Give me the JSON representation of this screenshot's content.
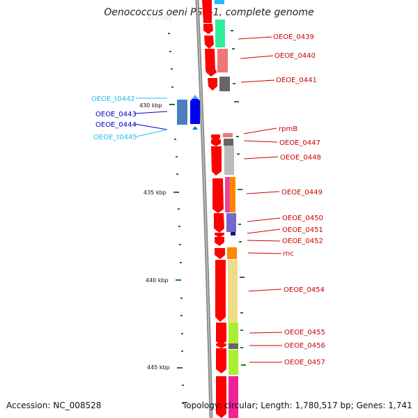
{
  "title": "Oenococcus oeni PSU-1, complete genome",
  "footer": {
    "accession": "Accession: NC_008528",
    "topology": "Topology: circular; Length: 1,780,517 bp; Genes: 1,741"
  },
  "colors": {
    "backbone": "#808080",
    "red_gene": "#ff0000",
    "tick": "#1a7a1a",
    "label_red": "#cc0000",
    "label_blue": "#0000cc",
    "label_cyan": "#22bbee"
  },
  "scale_labels": [
    {
      "kbp": 430,
      "text": "430 kbp"
    },
    {
      "kbp": 435,
      "text": "435 kbp"
    },
    {
      "kbp": 440,
      "text": "440 kbp"
    },
    {
      "kbp": 445,
      "text": "445 kbp"
    }
  ],
  "gene_labels": [
    {
      "text": "OEOE_0439",
      "color": "red"
    },
    {
      "text": "OEOE_0440",
      "color": "red"
    },
    {
      "text": "OEOE_0441",
      "color": "red"
    },
    {
      "text": "rpmB",
      "color": "red"
    },
    {
      "text": "OEOE_0447",
      "color": "red"
    },
    {
      "text": "OEOE_0448",
      "color": "red"
    },
    {
      "text": "OEOE_0449",
      "color": "red"
    },
    {
      "text": "OEOE_0450",
      "color": "red"
    },
    {
      "text": "OEOE_0451",
      "color": "red"
    },
    {
      "text": "OEOE_0452",
      "color": "red"
    },
    {
      "text": "rnc",
      "color": "red"
    },
    {
      "text": "OEOE_0454",
      "color": "red"
    },
    {
      "text": "OEOE_0455",
      "color": "red"
    },
    {
      "text": "OEOE_0456",
      "color": "red"
    },
    {
      "text": "OEOE_0457",
      "color": "red"
    },
    {
      "text": "OEOE_t0442",
      "color": "cyan"
    },
    {
      "text": "OEOE_0443",
      "color": "blue"
    },
    {
      "text": "OEOE_0444",
      "color": "blue"
    },
    {
      "text": "OEOE_t0445",
      "color": "cyan"
    }
  ]
}
